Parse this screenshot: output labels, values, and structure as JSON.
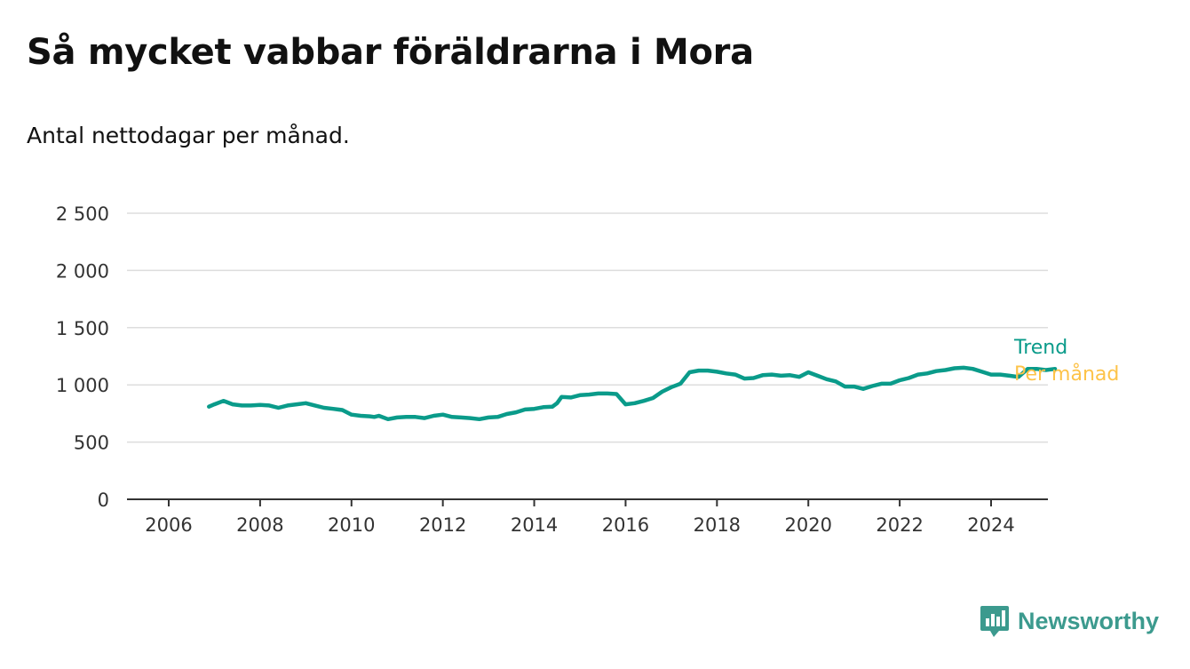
{
  "title": "Så mycket vabbar föräldrarna i Mora",
  "subtitle": "Antal nettodagar per månad.",
  "brand": "Newsworthy",
  "colors": {
    "trend": "#0a9b8a",
    "monthly": "#fdc349",
    "grid": "#dddddd",
    "axis": "#333333",
    "brand": "#3c9a8e"
  },
  "chart_data": {
    "type": "line",
    "title": "Så mycket vabbar föräldrarna i Mora",
    "subtitle": "Antal nettodagar per månad.",
    "xlabel": "",
    "ylabel": "",
    "xlim": [
      2005.3,
      2025.5
    ],
    "ylim": [
      0,
      2500
    ],
    "x_ticks": [
      "2006",
      "2008",
      "2010",
      "2012",
      "2014",
      "2016",
      "2018",
      "2020",
      "2022",
      "2024"
    ],
    "y_ticks": [
      "0",
      "500",
      "1 000",
      "1 500",
      "2 000",
      "2 500"
    ],
    "grid": true,
    "legend_position": "right",
    "series": [
      {
        "name": "Trend",
        "points": [
          [
            2006.88,
            810
          ],
          [
            2007.0,
            830
          ],
          [
            2007.2,
            860
          ],
          [
            2007.4,
            830
          ],
          [
            2007.6,
            820
          ],
          [
            2007.8,
            820
          ],
          [
            2008.0,
            825
          ],
          [
            2008.2,
            820
          ],
          [
            2008.4,
            800
          ],
          [
            2008.6,
            820
          ],
          [
            2008.8,
            830
          ],
          [
            2009.0,
            840
          ],
          [
            2009.2,
            820
          ],
          [
            2009.4,
            800
          ],
          [
            2009.6,
            790
          ],
          [
            2009.8,
            780
          ],
          [
            2010.0,
            740
          ],
          [
            2010.2,
            730
          ],
          [
            2010.4,
            725
          ],
          [
            2010.5,
            720
          ],
          [
            2010.6,
            730
          ],
          [
            2010.8,
            700
          ],
          [
            2011.0,
            715
          ],
          [
            2011.2,
            720
          ],
          [
            2011.4,
            720
          ],
          [
            2011.6,
            710
          ],
          [
            2011.8,
            730
          ],
          [
            2012.0,
            740
          ],
          [
            2012.2,
            720
          ],
          [
            2012.4,
            715
          ],
          [
            2012.6,
            710
          ],
          [
            2012.8,
            700
          ],
          [
            2013.0,
            715
          ],
          [
            2013.2,
            720
          ],
          [
            2013.4,
            745
          ],
          [
            2013.6,
            760
          ],
          [
            2013.8,
            785
          ],
          [
            2014.0,
            790
          ],
          [
            2014.2,
            805
          ],
          [
            2014.4,
            810
          ],
          [
            2014.5,
            840
          ],
          [
            2014.6,
            895
          ],
          [
            2014.8,
            890
          ],
          [
            2015.0,
            910
          ],
          [
            2015.2,
            915
          ],
          [
            2015.4,
            925
          ],
          [
            2015.6,
            925
          ],
          [
            2015.8,
            920
          ],
          [
            2016.0,
            830
          ],
          [
            2016.2,
            840
          ],
          [
            2016.4,
            860
          ],
          [
            2016.6,
            885
          ],
          [
            2016.8,
            940
          ],
          [
            2017.0,
            980
          ],
          [
            2017.2,
            1010
          ],
          [
            2017.4,
            1110
          ],
          [
            2017.6,
            1125
          ],
          [
            2017.8,
            1125
          ],
          [
            2018.0,
            1115
          ],
          [
            2018.2,
            1100
          ],
          [
            2018.4,
            1090
          ],
          [
            2018.6,
            1055
          ],
          [
            2018.8,
            1060
          ],
          [
            2019.0,
            1085
          ],
          [
            2019.2,
            1090
          ],
          [
            2019.4,
            1080
          ],
          [
            2019.6,
            1085
          ],
          [
            2019.8,
            1070
          ],
          [
            2020.0,
            1110
          ],
          [
            2020.2,
            1080
          ],
          [
            2020.4,
            1050
          ],
          [
            2020.6,
            1030
          ],
          [
            2020.8,
            985
          ],
          [
            2021.0,
            985
          ],
          [
            2021.2,
            965
          ],
          [
            2021.4,
            990
          ],
          [
            2021.6,
            1010
          ],
          [
            2021.8,
            1010
          ],
          [
            2022.0,
            1040
          ],
          [
            2022.2,
            1060
          ],
          [
            2022.4,
            1090
          ],
          [
            2022.6,
            1100
          ],
          [
            2022.8,
            1120
          ],
          [
            2023.0,
            1130
          ],
          [
            2023.2,
            1145
          ],
          [
            2023.4,
            1150
          ],
          [
            2023.6,
            1140
          ],
          [
            2023.8,
            1115
          ],
          [
            2024.0,
            1090
          ],
          [
            2024.2,
            1090
          ],
          [
            2024.4,
            1080
          ],
          [
            2024.6,
            1070
          ],
          [
            2024.8,
            1140
          ],
          [
            2025.0,
            1140
          ],
          [
            2025.2,
            1130
          ],
          [
            2025.4,
            1140
          ]
        ]
      },
      {
        "name": "Per månad",
        "points": []
      }
    ]
  }
}
